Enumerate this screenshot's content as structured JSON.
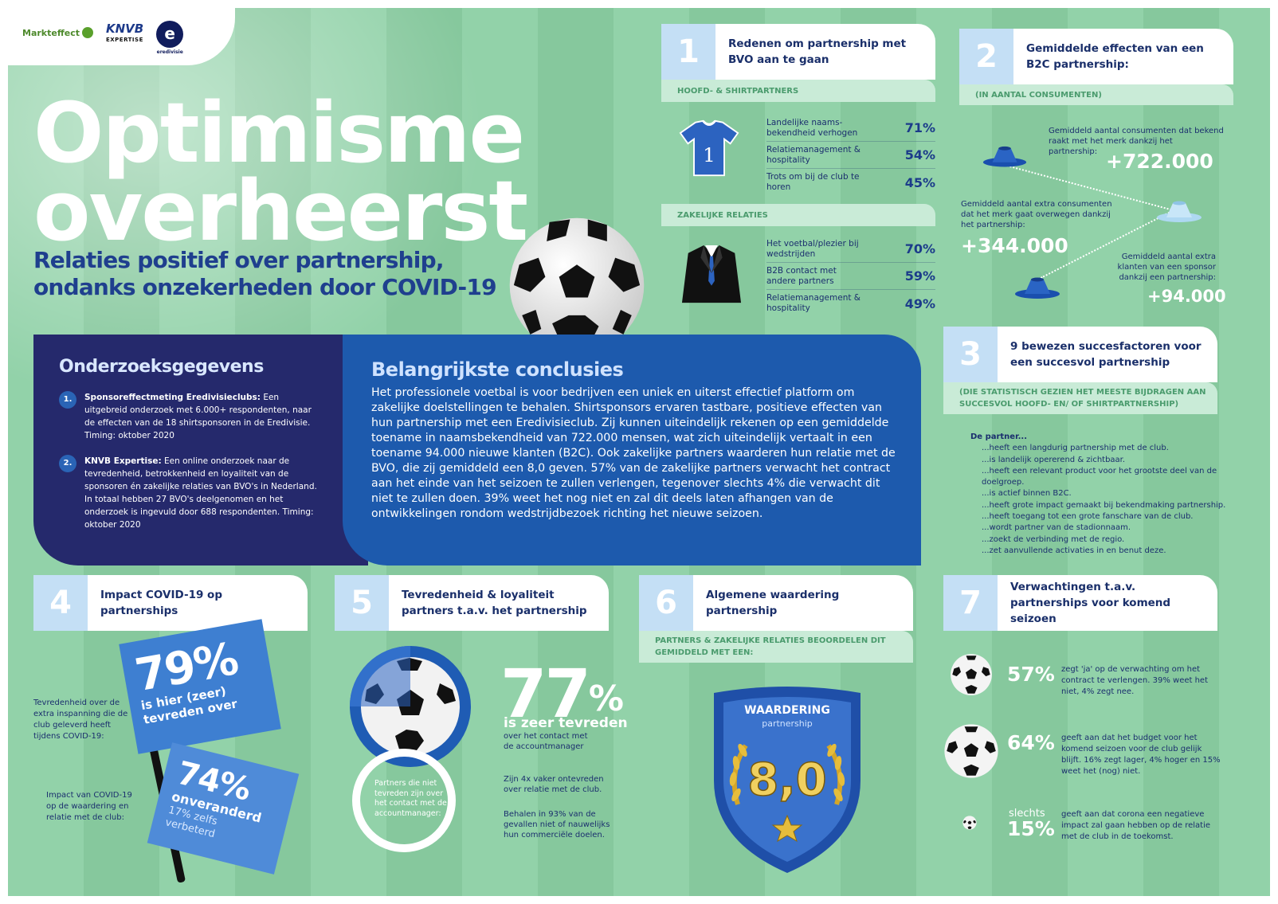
{
  "logos": {
    "markteffect": "Markteffect",
    "knvb": "KNVB",
    "knvb_sub": "EXPERTISE",
    "eredivisie": "e",
    "eredivisie_sub": "eredivisie"
  },
  "title": "Optimisme\noverheerst",
  "subtitle": "Relaties positief over partnership,\nondanks onzekerheden door COVID-19",
  "onderzoek": {
    "heading": "Onderzoeksgegevens",
    "items": [
      {
        "num": "1.",
        "bold": "Sponsoreffectmeting Eredivisieclubs:",
        "text": " Een uitgebreid onderzoek met 6.000+ respondenten, naar de effecten van de 18 shirtsponsoren in de Eredivisie. Timing: oktober 2020"
      },
      {
        "num": "2.",
        "bold": "KNVB Expertise:",
        "text": " Een online onderzoek naar de tevredenheid, betrokkenheid en loyaliteit van de sponsoren én zakelijke relaties van BVO's in Nederland. In totaal hebben 27 BVO's deelgenomen en het onderzoek is ingevuld door 688 respondenten. Timing: oktober 2020"
      }
    ]
  },
  "conclusies": {
    "heading": "Belangrijkste conclusies",
    "text": "Het professionele voetbal is voor bedrijven een uniek en uiterst effectief platform om zakelijke doelstellingen te behalen. Shirtsponsors ervaren tastbare, positieve effecten van hun partnership met een Eredivisieclub. Zij kunnen uiteindelijk rekenen op een gemiddelde toename in naamsbekendheid van 722.000 mensen, wat zich uiteindelijk vertaalt in een toename 94.000 nieuwe klanten (B2C). Ook zakelijke partners waarderen hun relatie met de BVO, die zij gemiddeld een 8,0 geven. 57% van de zakelijke partners verwacht het contract aan het einde van het seizoen te zullen verlengen, tegenover slechts 4% die verwacht dit niet te zullen doen. 39% weet het nog niet en zal dit deels laten afhangen van de ontwikkelingen rondom wedstrijdbezoek richting het nieuwe seizoen."
  },
  "s1": {
    "num": "1",
    "title": "Redenen om partnership met BVO aan te gaan",
    "band1": "HOOFD- & SHIRTPARTNERS",
    "rows1": [
      {
        "label": "Landelijke naams-bekendheid verhogen",
        "value": "71%"
      },
      {
        "label": "Relatiemanagement & hospitality",
        "value": "54%"
      },
      {
        "label": "Trots om bij de club te horen",
        "value": "45%"
      }
    ],
    "shirt_number": "1",
    "band2": "ZAKELIJKE RELATIES",
    "rows2": [
      {
        "label": "Het voetbal/plezier bij wedstrijden",
        "value": "70%"
      },
      {
        "label": "B2B contact met andere partners",
        "value": "59%"
      },
      {
        "label": "Relatiemanagement & hospitality",
        "value": "49%"
      }
    ]
  },
  "s2": {
    "num": "2",
    "title": "Gemiddelde effecten van een B2C partnership:",
    "band": "(IN AANTAL CONSUMENTEN)",
    "t1": "Gemiddeld aantal consumenten dat bekend raakt met het merk dankzij het partnership:",
    "v1": "+722.000",
    "t2": "Gemiddeld aantal extra consumenten dat het merk gaat overwegen dankzij het partnership:",
    "v2": "+344.000",
    "t3": "Gemiddeld aantal extra klanten van een sponsor dankzij een partnership:",
    "v3": "+94.000"
  },
  "s3": {
    "num": "3",
    "title": "9 bewezen succesfactoren voor een succesvol partnership",
    "band": "(DIE STATISTISCH GEZIEN HET MEESTE BIJDRAGEN AAN SUCCESVOL HOOFD- EN/ OF SHIRTPARTNERSHIP)",
    "intro": "De partner...",
    "items": [
      "...heeft een langdurig partnership met de club.",
      "...is landelijk opererend & zichtbaar.",
      "...heeft een relevant product voor het grootste deel van de doelgroep.",
      "...is actief binnen B2C.",
      "...heeft grote impact gemaakt bij bekendmaking partnership.",
      "...heeft toegang tot een grote fanschare van de club.",
      "...wordt partner van de stadionnaam.",
      "...zoekt de verbinding met de regio.",
      "...zet aanvullende activaties in en benut deze."
    ]
  },
  "s4": {
    "num": "4",
    "title": "Impact COVID-19 op partnerships",
    "flag1_pct": "79%",
    "flag1_text": "is hier (zeer) tevreden over",
    "flag2_pct": "74%",
    "flag2_text": "onveranderd",
    "flag2_sub": "17% zelfs verbeterd",
    "text1": "Tevredenheid over de extra inspanning die de club geleverd heeft tijdens COVID-19:",
    "text2": "Impact van COVID-19 op de waardering en relatie met de club:"
  },
  "s5": {
    "num": "5",
    "title": "Tevredenheid & loyaliteit partners t.a.v. het partnership",
    "big": "77",
    "big_unit": "%",
    "zeer": "is zeer tevreden",
    "over": "over het contact met de accountmanager",
    "circle": "Partners die niet tevreden zijn over het contact met de accountmanager:",
    "f1": "Zijn 4x vaker ontevreden over relatie met de club.",
    "f2": "Behalen in 93% van de gevallen niet of nauwelijks hun commerciële doelen."
  },
  "s6": {
    "num": "6",
    "title": "Algemene waardering partnership",
    "band": "PARTNERS & ZAKELIJKE RELATIES BEOORDELEN DIT GEMIDDELD MET EEN:",
    "shield_title": "WAARDERING",
    "shield_sub": "partnership",
    "score": "8,0"
  },
  "s7": {
    "num": "7",
    "title": "Verwachtingen t.a.v. partnerships voor komend seizoen",
    "p1": "57%",
    "t1": "zegt 'ja' op de verwachting om het contract te verlengen. 39% weet het niet, 4% zegt nee.",
    "p2": "64%",
    "t2": "geeft aan dat het budget voor het komend seizoen voor de club gelijk blijft. 16% zegt lager, 4% hoger en 15% weet het (nog) niet.",
    "p3_small": "slechts",
    "p3": "15%",
    "t3": "geeft aan dat corona een negatieve impact zal gaan hebben op de relatie met de club in de toekomst."
  }
}
